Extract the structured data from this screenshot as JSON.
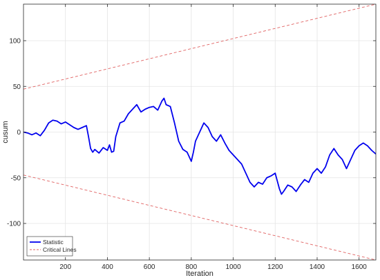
{
  "chart_data": {
    "type": "line",
    "title": "",
    "xlabel": "Iteration",
    "ylabel": "cusum",
    "xlim": [
      0,
      1680
    ],
    "ylim": [
      -140,
      140
    ],
    "xticks": [
      200,
      400,
      600,
      800,
      1000,
      1200,
      1400,
      1600
    ],
    "yticks": [
      -100,
      -50,
      0,
      50,
      100
    ],
    "grid": true,
    "legend_position": "bottom-left",
    "series": [
      {
        "name": "Statistic",
        "style": "solid",
        "color": "#0000ee",
        "x": [
          0,
          20,
          40,
          60,
          80,
          100,
          120,
          140,
          160,
          180,
          200,
          220,
          240,
          260,
          280,
          300,
          310,
          320,
          330,
          340,
          360,
          380,
          400,
          410,
          420,
          430,
          440,
          460,
          480,
          500,
          520,
          540,
          560,
          580,
          600,
          620,
          640,
          660,
          670,
          680,
          700,
          720,
          740,
          760,
          780,
          800,
          810,
          820,
          840,
          860,
          880,
          900,
          920,
          940,
          960,
          980,
          1000,
          1020,
          1040,
          1060,
          1080,
          1100,
          1120,
          1140,
          1160,
          1180,
          1200,
          1220,
          1230,
          1240,
          1260,
          1280,
          1300,
          1320,
          1340,
          1360,
          1380,
          1400,
          1420,
          1440,
          1460,
          1480,
          1500,
          1520,
          1540,
          1560,
          1580,
          1600,
          1620,
          1640,
          1660,
          1680
        ],
        "y": [
          0,
          -1,
          -3,
          -1,
          -4,
          2,
          10,
          13,
          12,
          9,
          11,
          8,
          5,
          3,
          5,
          7,
          -5,
          -18,
          -22,
          -19,
          -23,
          -17,
          -20,
          -14,
          -22,
          -21,
          -5,
          10,
          12,
          20,
          25,
          30,
          22,
          25,
          27,
          28,
          24,
          34,
          37,
          30,
          28,
          10,
          -10,
          -19,
          -22,
          -32,
          -22,
          -10,
          0,
          10,
          5,
          -5,
          -10,
          -3,
          -12,
          -20,
          -25,
          -30,
          -35,
          -45,
          -55,
          -60,
          -55,
          -57,
          -50,
          -48,
          -45,
          -62,
          -68,
          -65,
          -58,
          -60,
          -65,
          -58,
          -52,
          -55,
          -45,
          -40,
          -45,
          -38,
          -25,
          -18,
          -25,
          -30,
          -40,
          -30,
          -20,
          -15,
          -12,
          -15,
          -20,
          -24
        ]
      },
      {
        "name": "Critical Lines",
        "style": "dashed",
        "color": "#e06060",
        "x": [
          0,
          1680
        ],
        "y": [
          47,
          140
        ]
      },
      {
        "name": "Critical Lines",
        "style": "dashed",
        "color": "#e06060",
        "x": [
          0,
          1680
        ],
        "y": [
          -47,
          -140
        ]
      }
    ]
  },
  "legend": {
    "items": [
      {
        "label": "Statistic",
        "color": "#0000ee",
        "style": "solid"
      },
      {
        "label": "Critical Lines",
        "color": "#e06060",
        "style": "dashed"
      }
    ]
  }
}
